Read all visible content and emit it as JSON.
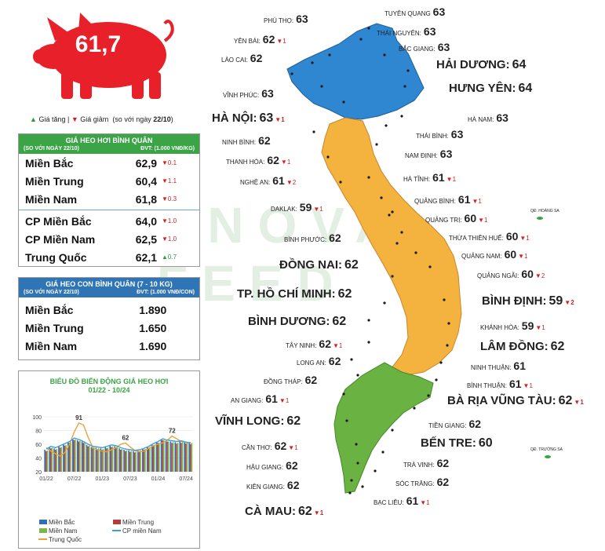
{
  "pig": {
    "price": "61,7"
  },
  "legend": {
    "up": "Giá tăng",
    "sep": "|",
    "down": "Giá giảm",
    "compare": "(so với ngày",
    "date": "22/10",
    "close": ")"
  },
  "watermark": "ANOVA FEED",
  "table1": {
    "title": "GIÁ HEO HƠI BÌNH QUÂN",
    "sub_left": "(SO VỚI NGÀY 22/10)",
    "sub_right": "ĐVT: (1.000 VNĐ/KG)",
    "rows": [
      {
        "name": "Miền Bắc",
        "value": "62,9",
        "change": "▼0.1",
        "dir": "down"
      },
      {
        "name": "Miền Trung",
        "value": "60,4",
        "change": "▼1.1",
        "dir": "down"
      },
      {
        "name": "Miền Nam",
        "value": "61,8",
        "change": "▼0.3",
        "dir": "down"
      },
      {
        "name": "CP Miền Bắc",
        "value": "64,0",
        "change": "▼1.0",
        "dir": "down"
      },
      {
        "name": "CP Miền Nam",
        "value": "62,5",
        "change": "▼1.0",
        "dir": "down"
      },
      {
        "name": "Trung Quốc",
        "value": "62,1",
        "change": "▲0.7",
        "dir": "up"
      }
    ]
  },
  "table2": {
    "title": "GIÁ HEO CON BÌNH QUÂN (7 - 10 KG)",
    "sub_left": "(SO VỚI NGÀY 22/10)",
    "sub_right": "ĐVT: (1.000 VNĐ/CON)",
    "rows": [
      {
        "name": "Miền Bắc",
        "value": "1.890"
      },
      {
        "name": "Miền Trung",
        "value": "1.650"
      },
      {
        "name": "Miền Nam",
        "value": "1.690"
      }
    ]
  },
  "chart_data": {
    "type": "bar",
    "title": "BIỂU ĐỒ BIẾN ĐỘNG GIÁ HEO HƠI",
    "subtitle": "01/22 - 10/24",
    "ylim": [
      20,
      100
    ],
    "yticks": [
      "20",
      "40",
      "60",
      "80",
      "100"
    ],
    "xticks": [
      "01/22",
      "07/22",
      "01/23",
      "07/23",
      "01/24",
      "07/24"
    ],
    "annotations": [
      "91",
      "62",
      "72"
    ],
    "series": [
      {
        "name": "Miền Bắc",
        "kind": "bar",
        "color": "#2f6db5",
        "values": [
          52,
          56,
          54,
          57,
          60,
          63,
          68,
          66,
          64,
          59,
          56,
          55,
          54,
          56,
          58,
          57,
          54,
          52,
          51,
          50,
          51,
          53,
          56,
          60,
          63,
          67,
          65,
          64,
          63,
          64,
          63,
          63
        ]
      },
      {
        "name": "Miền Trung",
        "kind": "bar",
        "color": "#b04040",
        "values": [
          50,
          54,
          52,
          55,
          58,
          62,
          66,
          64,
          62,
          57,
          54,
          53,
          52,
          54,
          56,
          55,
          52,
          50,
          49,
          48,
          50,
          52,
          55,
          58,
          62,
          66,
          64,
          62,
          61,
          62,
          61,
          60
        ]
      },
      {
        "name": "Miền Nam",
        "kind": "bar",
        "color": "#7bb848",
        "values": [
          51,
          55,
          53,
          56,
          59,
          63,
          67,
          65,
          63,
          58,
          55,
          54,
          53,
          55,
          57,
          56,
          53,
          51,
          50,
          49,
          51,
          53,
          56,
          59,
          62,
          66,
          64,
          63,
          62,
          63,
          62,
          62
        ]
      },
      {
        "name": "Trung Quốc",
        "kind": "line",
        "color": "#e8a33a",
        "values": [
          55,
          50,
          46,
          43,
          48,
          60,
          78,
          91,
          88,
          70,
          55,
          52,
          50,
          49,
          52,
          55,
          60,
          62,
          56,
          51,
          49,
          50,
          54,
          58,
          60,
          62,
          66,
          72,
          68,
          64,
          63,
          62
        ]
      },
      {
        "name": "CP miền Nam",
        "kind": "line",
        "color": "#3ca0d8",
        "values": [
          53,
          57,
          55,
          58,
          61,
          64,
          69,
          67,
          64,
          60,
          57,
          56,
          55,
          57,
          59,
          58,
          55,
          53,
          52,
          51,
          52,
          54,
          57,
          61,
          64,
          68,
          66,
          65,
          64,
          65,
          63,
          62
        ]
      }
    ]
  },
  "map": {
    "provinces": [
      {
        "name": "TUYÊN QUANG",
        "value": "63",
        "change": ""
      },
      {
        "name": "PHÚ THỌ:",
        "value": "63",
        "change": ""
      },
      {
        "name": "THÁI NGUYÊN:",
        "value": "63",
        "change": ""
      },
      {
        "name": "YÊN BÁI:",
        "value": "62",
        "change": "▼1"
      },
      {
        "name": "BẮC GIANG:",
        "value": "63",
        "change": ""
      },
      {
        "name": "LÀO CAI:",
        "value": "62",
        "change": ""
      },
      {
        "name": "HẢI DƯƠNG:",
        "value": "64",
        "change": ""
      },
      {
        "name": "HƯNG YÊN:",
        "value": "64",
        "change": ""
      },
      {
        "name": "VĨNH PHÚC:",
        "value": "63",
        "change": ""
      },
      {
        "name": "HÀ NỘI:",
        "value": "63",
        "change": "▼1"
      },
      {
        "name": "HÀ NAM:",
        "value": "63",
        "change": ""
      },
      {
        "name": "THÁI BÌNH:",
        "value": "63",
        "change": ""
      },
      {
        "name": "NINH BÌNH:",
        "value": "62",
        "change": ""
      },
      {
        "name": "NAM ĐỊNH:",
        "value": "63",
        "change": ""
      },
      {
        "name": "THANH HÓA:",
        "value": "62",
        "change": "▼1"
      },
      {
        "name": "HÀ TĨNH:",
        "value": "61",
        "change": "▼1"
      },
      {
        "name": "NGHỆ AN:",
        "value": "61",
        "change": "▼2"
      },
      {
        "name": "QUẢNG BÌNH:",
        "value": "61",
        "change": "▼1"
      },
      {
        "name": "DAKLAK:",
        "value": "59",
        "change": "▼1"
      },
      {
        "name": "QUẢNG TRỊ:",
        "value": "60",
        "change": "▼1"
      },
      {
        "name": "THỪA THIÊN HUẾ:",
        "value": "60",
        "change": "▼1"
      },
      {
        "name": "BÌNH PHƯỚC:",
        "value": "62",
        "change": ""
      },
      {
        "name": "QUẢNG NAM:",
        "value": "60",
        "change": "▼1"
      },
      {
        "name": "ĐỒNG NAI:",
        "value": "62",
        "change": ""
      },
      {
        "name": "QUẢNG NGÃI:",
        "value": "60",
        "change": "▼2"
      },
      {
        "name": "TP. HỒ CHÍ MINH:",
        "value": "62",
        "change": ""
      },
      {
        "name": "BÌNH ĐỊNH:",
        "value": "59",
        "change": "▼2"
      },
      {
        "name": "BÌNH DƯƠNG:",
        "value": "62",
        "change": ""
      },
      {
        "name": "KHÁNH HÒA:",
        "value": "59",
        "change": "▼1"
      },
      {
        "name": "TÂY NINH:",
        "value": "62",
        "change": "▼1"
      },
      {
        "name": "LÂM ĐỒNG:",
        "value": "62",
        "change": ""
      },
      {
        "name": "LONG AN:",
        "value": "62",
        "change": ""
      },
      {
        "name": "NINH THUẬN:",
        "value": "61",
        "change": ""
      },
      {
        "name": "ĐỒNG THÁP:",
        "value": "62",
        "change": ""
      },
      {
        "name": "BÌNH THUẬN:",
        "value": "61",
        "change": "▼1"
      },
      {
        "name": "AN GIANG:",
        "value": "61",
        "change": "▼1"
      },
      {
        "name": "BÀ RỊA VŨNG TÀU:",
        "value": "62",
        "change": "▼1"
      },
      {
        "name": "VĨNH LONG:",
        "value": "62",
        "change": ""
      },
      {
        "name": "TIỀN GIANG:",
        "value": "62",
        "change": ""
      },
      {
        "name": "CẦN THƠ:",
        "value": "62",
        "change": "▼1"
      },
      {
        "name": "BẾN TRE:",
        "value": "60",
        "change": ""
      },
      {
        "name": "HẬU GIANG:",
        "value": "62",
        "change": ""
      },
      {
        "name": "TRÀ VINH:",
        "value": "62",
        "change": ""
      },
      {
        "name": "KIÊN GIANG:",
        "value": "62",
        "change": ""
      },
      {
        "name": "SÓC TRĂNG:",
        "value": "62",
        "change": ""
      },
      {
        "name": "CÀ MAU:",
        "value": "62",
        "change": "▼1"
      },
      {
        "name": "BẠC LIÊU:",
        "value": "61",
        "change": "▼1"
      }
    ],
    "islands": [
      "QĐ. HOÀNG SA",
      "QĐ. TRƯỜNG SA"
    ],
    "colors": {
      "north": "#2f86d1",
      "central": "#f4b23e",
      "south": "#6ab343"
    }
  }
}
